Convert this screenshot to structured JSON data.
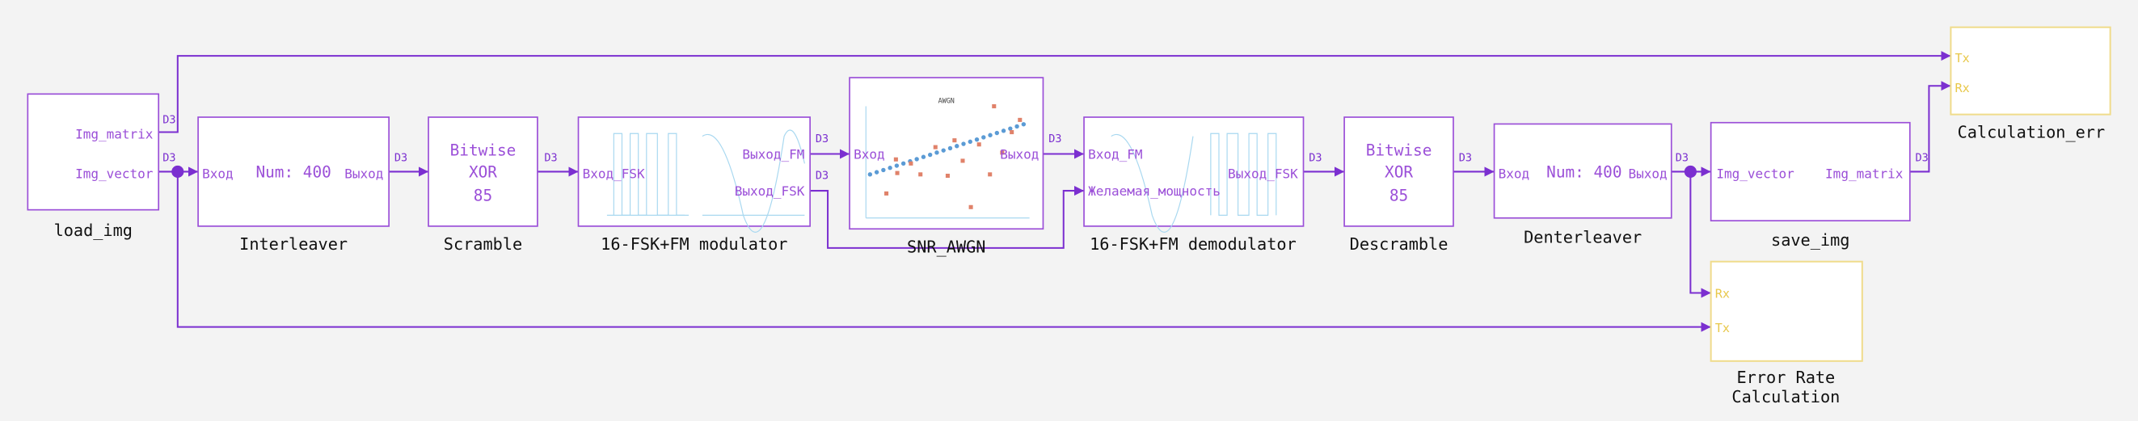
{
  "blocks": [
    {
      "caption": "load_img",
      "ports": [
        "Img_matrix",
        "Img_vector"
      ]
    },
    {
      "caption": "Interleaver",
      "ports": [
        "Вход",
        "Выход"
      ],
      "body": [
        "Num: 400"
      ]
    },
    {
      "caption": "Scramble",
      "body": [
        "Bitwise",
        "XOR",
        "85"
      ]
    },
    {
      "caption": "16-FSK+FM modulator",
      "ports": [
        "Вход_FSK",
        "Выход_FM",
        "Выход_FSK"
      ]
    },
    {
      "caption": "SNR_AWGN",
      "ports": [
        "Вход",
        "Выход"
      ],
      "plot_title": "AWGN"
    },
    {
      "caption": "16-FSK+FM demodulator",
      "ports": [
        "Вход_FM",
        "Желаемая_мощность",
        "Выход_FSK"
      ]
    },
    {
      "caption": "Descramble",
      "body": [
        "Bitwise",
        "XOR",
        "85"
      ]
    },
    {
      "caption": "Denterleaver",
      "ports": [
        "Вход",
        "Выход"
      ],
      "body": [
        "Num: 400"
      ]
    },
    {
      "caption": "save_img",
      "ports": [
        "Img_vector",
        "Img_matrix"
      ]
    },
    {
      "caption": "Calculation_err",
      "ports": [
        "Tx",
        "Rx"
      ]
    },
    {
      "caption": [
        "Error Rate",
        "Calculation"
      ],
      "ports": [
        "Rx",
        "Tx"
      ]
    }
  ],
  "wire_labels": [
    "D3",
    "D3",
    "D3",
    "D3",
    "D3",
    "D3",
    "D3",
    "D3",
    "D3",
    "D3",
    "D3"
  ]
}
